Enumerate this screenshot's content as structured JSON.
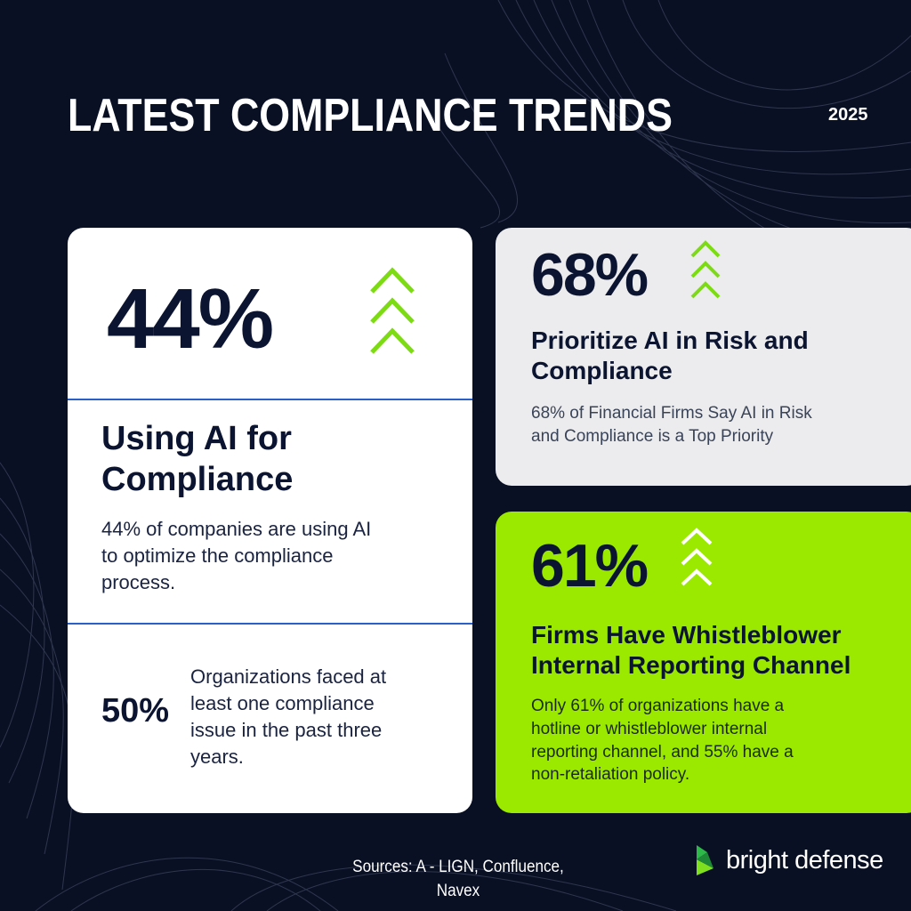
{
  "header": {
    "title": "LATEST COMPLIANCE TRENDS",
    "year": "2025"
  },
  "left_card": {
    "stat": "44%",
    "heading_line1": "Using AI for",
    "heading_line2": "Compliance",
    "description_line1": "44% of companies are using AI",
    "description_line2": "to optimize the compliance",
    "description_line3": "process.",
    "sub_stat": "50%",
    "sub_text_line1": "Organizations faced at",
    "sub_text_line2": "least one compliance",
    "sub_text_line3": "issue in the past three",
    "sub_text_line4": "years."
  },
  "gray_card": {
    "stat": "68%",
    "heading_line1": "Prioritize AI in Risk and",
    "heading_line2": "Compliance",
    "description_line1": "68% of Financial Firms Say AI in Risk",
    "description_line2": "and Compliance is a Top Priority"
  },
  "green_card": {
    "stat": "61%",
    "heading_line1": "Firms Have Whistleblower",
    "heading_line2": "Internal Reporting Channel",
    "description_line1": "Only 61% of organizations have a",
    "description_line2": "hotline or whistleblower internal",
    "description_line3": "reporting channel, and 55% have a",
    "description_line4": "non-retaliation policy."
  },
  "footer": {
    "sources_line1": "Sources: A - LIGN, Confluence,",
    "sources_line2": "Navex",
    "brand": "bright defense"
  },
  "colors": {
    "background": "#0a1024",
    "accent_green": "#9be900",
    "chevron_green": "#7ddb14",
    "divider_blue": "#2a5fc8",
    "text_dark": "#0b1430"
  },
  "icons": {
    "trend": "triple-chevron-up-icon",
    "logo": "bright-defense-logo-icon"
  }
}
